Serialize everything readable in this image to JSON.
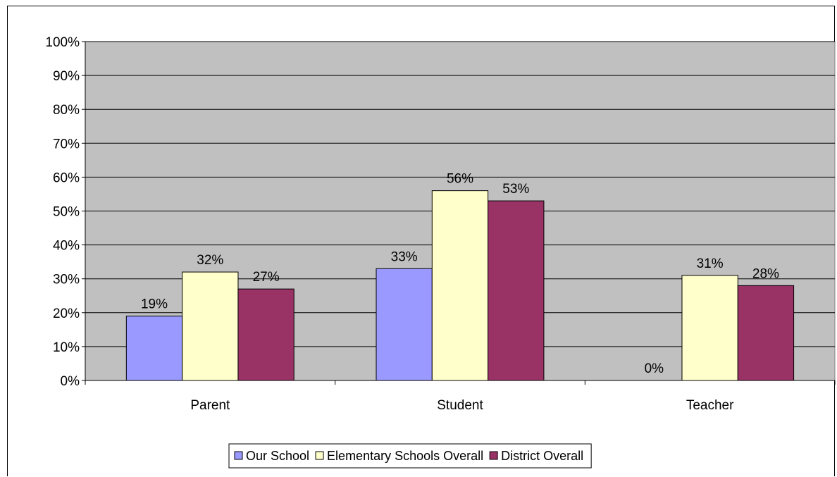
{
  "chart_data": {
    "type": "bar",
    "categories": [
      "Parent",
      "Student",
      "Teacher"
    ],
    "series": [
      {
        "name": "Our School",
        "values": [
          19,
          33,
          0
        ],
        "labels": [
          "19%",
          "33%",
          "0%"
        ],
        "color": "#9999ff"
      },
      {
        "name": "Elementary Schools Overall",
        "values": [
          32,
          56,
          31
        ],
        "labels": [
          "32%",
          "56%",
          "31%"
        ],
        "color": "#ffffcc"
      },
      {
        "name": "District Overall",
        "values": [
          27,
          53,
          28
        ],
        "labels": [
          "27%",
          "53%",
          "28%"
        ],
        "color": "#993366"
      }
    ],
    "ylim": [
      0,
      100
    ],
    "yticks": [
      "0%",
      "10%",
      "20%",
      "30%",
      "40%",
      "50%",
      "60%",
      "70%",
      "80%",
      "90%",
      "100%"
    ],
    "title": "",
    "xlabel": "",
    "ylabel": "",
    "grid": true,
    "legend_position": "bottom",
    "plot_background": "#c0c0c0"
  }
}
